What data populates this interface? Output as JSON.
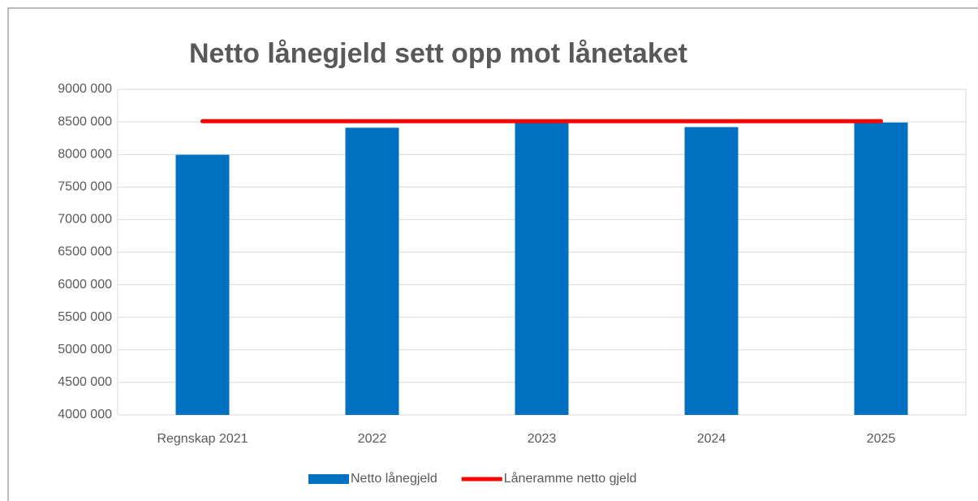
{
  "chart_data": {
    "type": "bar",
    "title": "Netto lånegjeld sett opp mot lånetaket",
    "categories": [
      "Regnskap 2021",
      "2022",
      "2023",
      "2024",
      "2025"
    ],
    "series": [
      {
        "name": "Netto lånegjeld",
        "type": "bar",
        "color": "#0070c0",
        "values": [
          7995000,
          8410000,
          8530000,
          8420000,
          8490000
        ]
      },
      {
        "name": "Låneramme netto gjeld",
        "type": "line",
        "color": "#ff0000",
        "values": [
          8510000,
          8510000,
          8510000,
          8510000,
          8510000
        ]
      }
    ],
    "ylim": [
      4000000,
      9000000
    ],
    "yticks": [
      {
        "value": 4000000,
        "label": "4000 000"
      },
      {
        "value": 4500000,
        "label": "4500 000"
      },
      {
        "value": 5000000,
        "label": "5000 000"
      },
      {
        "value": 5500000,
        "label": "5500 000"
      },
      {
        "value": 6000000,
        "label": "6000 000"
      },
      {
        "value": 6500000,
        "label": "6500 000"
      },
      {
        "value": 7000000,
        "label": "7000 000"
      },
      {
        "value": 7500000,
        "label": "7500 000"
      },
      {
        "value": 8000000,
        "label": "8000 000"
      },
      {
        "value": 8500000,
        "label": "8500 000"
      },
      {
        "value": 9000000,
        "label": "9000 000"
      }
    ],
    "grid": true,
    "legend": "bottom"
  }
}
